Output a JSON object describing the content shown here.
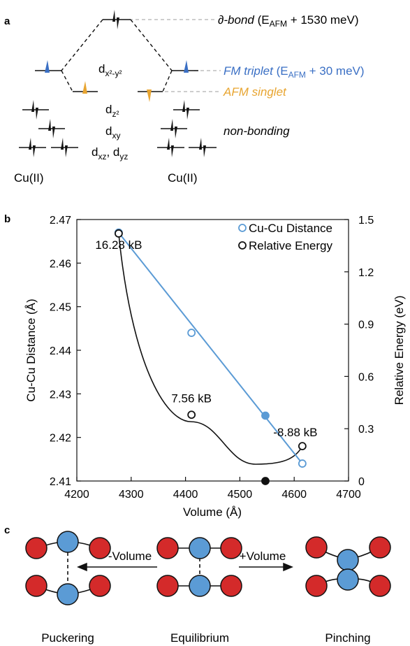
{
  "panels": {
    "a": "a",
    "b": "b",
    "c": "c"
  },
  "panel_a": {
    "dx2y2": {
      "base": "d",
      "sub": "x²-y²"
    },
    "dz2": {
      "base": "d",
      "sub": "z²"
    },
    "dxy": {
      "base": "d",
      "sub": "xy"
    },
    "dxz_dyz": {
      "base1": "d",
      "sub1": "xz",
      "sep": ", ",
      "base2": "d",
      "sub2": "yz"
    },
    "cu_left": "Cu(II)",
    "cu_right": "Cu(II)",
    "delta_bond": {
      "italic": "∂-bond",
      "pre": " (E",
      "sub": "AFM",
      "post": " + 1530 meV)"
    },
    "fm_triplet": {
      "italic": "FM triplet",
      "pre": " (E",
      "sub": "AFM",
      "post": " + 30 meV)"
    },
    "afm_singlet": "AFM singlet",
    "non_bonding": "non-bonding",
    "colors": {
      "fm": "#3a6fc4",
      "afm": "#e8a531",
      "dash": "#b0b0b0"
    }
  },
  "chart_data": {
    "type": "scatter",
    "xlabel": "Volume (Å)",
    "ylabel": "Cu-Cu Distance (Å)",
    "y2label": "Relative Energy (eV)",
    "xlim": [
      4200,
      4700
    ],
    "ylim": [
      2.41,
      2.47
    ],
    "y2lim": [
      0,
      1.5
    ],
    "xticks": [
      "4200",
      "4300",
      "4400",
      "4500",
      "4600",
      "4700"
    ],
    "yticks": [
      "2.41",
      "2.42",
      "2.43",
      "2.44",
      "2.45",
      "2.46",
      "2.47"
    ],
    "y2ticks": [
      "0",
      "0.3",
      "0.6",
      "0.9",
      "1.2",
      "1.5"
    ],
    "legend_position": "top-right",
    "series": [
      {
        "name": "Cu-Cu Distance",
        "axis": "left",
        "color": "#5b9bd5",
        "x": [
          4277,
          4411,
          4547,
          4615
        ],
        "y": [
          2.467,
          2.444,
          2.425,
          2.414
        ],
        "filled": [
          false,
          false,
          true,
          false
        ]
      },
      {
        "name": "Relative Energy",
        "axis": "right",
        "color": "#111111",
        "x": [
          4277,
          4411,
          4547,
          4615
        ],
        "y": [
          1.42,
          0.38,
          0.0,
          0.2
        ],
        "filled": [
          false,
          false,
          true,
          false
        ]
      }
    ],
    "annotations": [
      {
        "text": "16.28 kB",
        "x": 4277,
        "y2": 1.42
      },
      {
        "text": "7.56 kB",
        "x": 4411,
        "y2": 0.38
      },
      {
        "text": "-8.88 kB",
        "x": 4615,
        "y2": 0.2
      }
    ]
  },
  "panel_c": {
    "colors": {
      "cu": "#5b9bd5",
      "ligand": "#d42a2a"
    },
    "arrow_left_label": "-Volume",
    "arrow_right_label": "+Volume",
    "labels": [
      "Puckering",
      "Equilibrium",
      "Pinching"
    ]
  }
}
